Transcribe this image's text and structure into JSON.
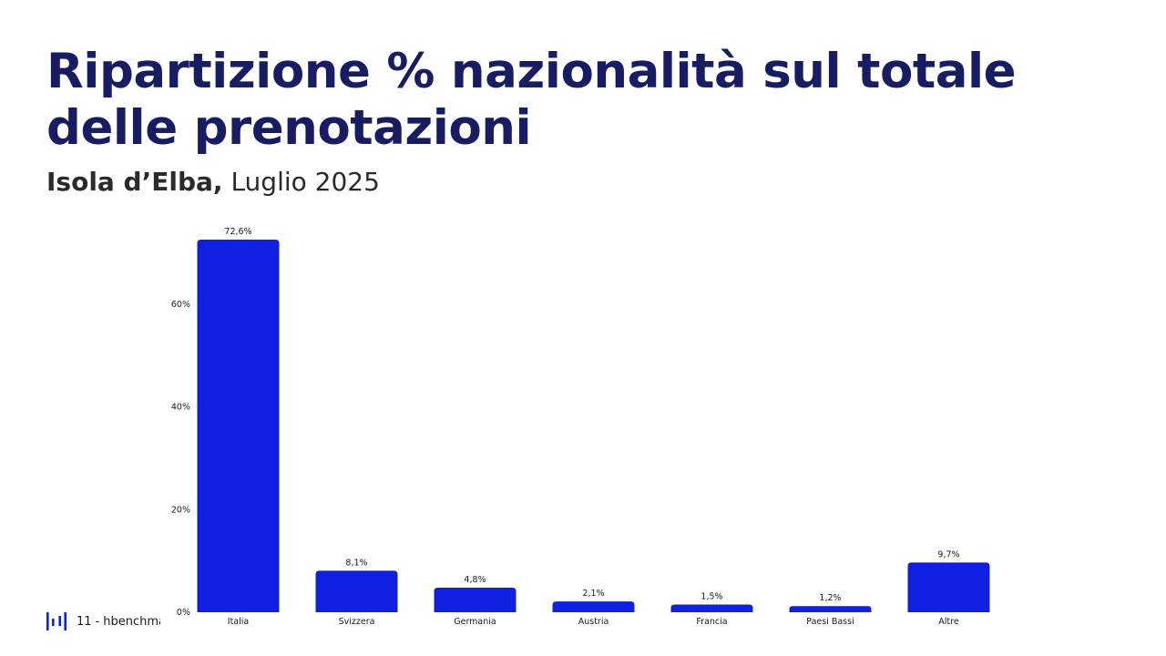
{
  "title": "Ripartizione % nazionalità sul totale delle prenotazioni",
  "subtitle": {
    "place": "Isola d’Elba",
    "separator": ",",
    "period": "Luglio 2025"
  },
  "footer": {
    "page": "11",
    "separator": "-",
    "brand": "hbenchmark"
  },
  "colors": {
    "title": "#181c62",
    "bar": "#1020e0",
    "text": "#1a1a1a"
  },
  "chart_data": {
    "type": "bar",
    "title": "",
    "xlabel": "",
    "ylabel": "",
    "categories": [
      "Italia",
      "Svizzera",
      "Germania",
      "Austria",
      "Francia",
      "Paesi Bassi",
      "Altre"
    ],
    "values": [
      72.6,
      8.1,
      4.8,
      2.1,
      1.5,
      1.2,
      9.7
    ],
    "data_labels": [
      "72,6%",
      "8,1%",
      "4,8%",
      "2,1%",
      "1,5%",
      "1,2%",
      "9,7%"
    ],
    "yticks": [
      0,
      20,
      40,
      60
    ],
    "ytick_labels": [
      "0%",
      "20%",
      "40%",
      "60%"
    ],
    "ylim": [
      0,
      72.6
    ],
    "grid": false,
    "legend": "none"
  }
}
